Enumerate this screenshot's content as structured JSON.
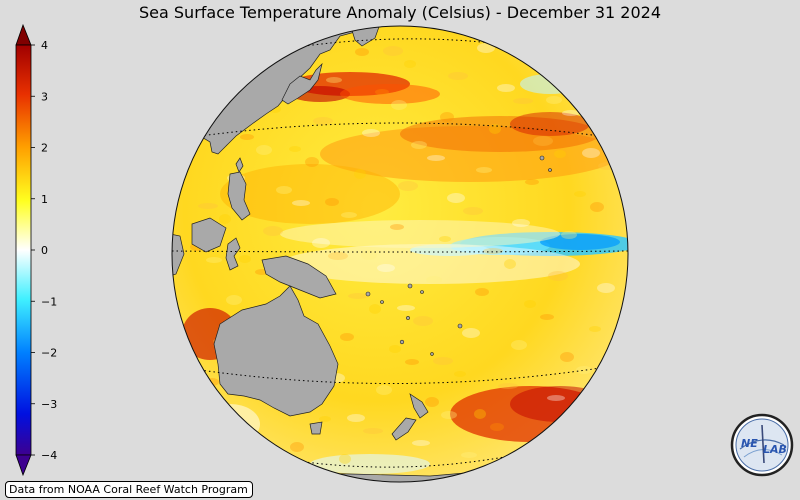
{
  "title": "Sea Surface Temperature Anomaly (Celsius) - December 31 2024",
  "colorbar": {
    "min": -4,
    "max": 4,
    "ticks": [
      "4",
      "3",
      "2",
      "1",
      "0",
      "−1",
      "−2",
      "−3",
      "−4"
    ],
    "colors": [
      "#3d0090",
      "#0018e8",
      "#0090ff",
      "#00e8ff",
      "#ffffff",
      "#ffff00",
      "#ffb000",
      "#f05000",
      "#c00000",
      "#800000"
    ],
    "extend_arrows": "both"
  },
  "map": {
    "projection": "orthographic",
    "land_color": "#a9a9a9",
    "graticule": "dotted"
  },
  "credit": "Data from NOAA Coral Reef Watch Program",
  "logo": {
    "text_left": "NE",
    "text_right": "LAB"
  }
}
